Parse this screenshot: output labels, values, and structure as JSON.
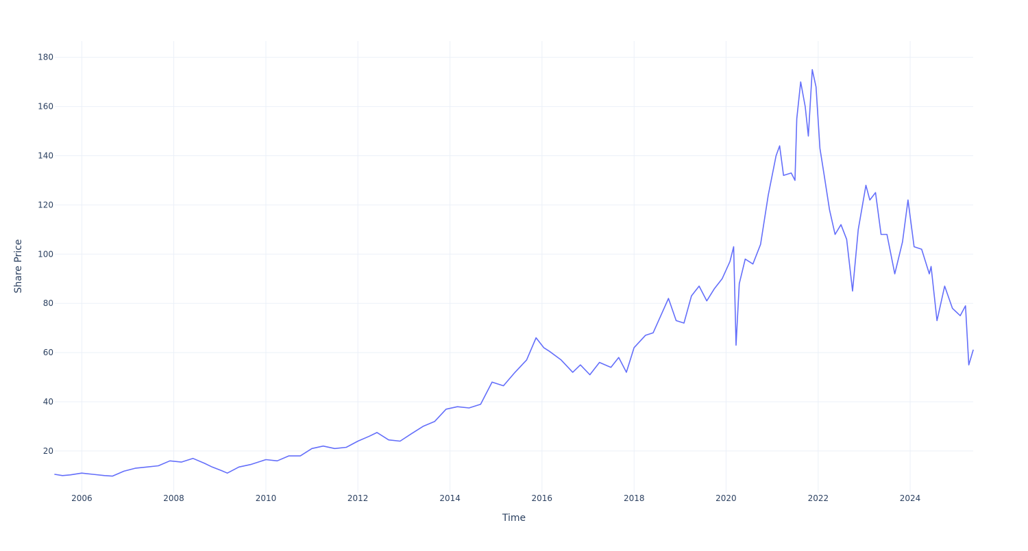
{
  "chart_data": {
    "type": "line",
    "title": "",
    "xlabel": "Time",
    "ylabel": "Share Price",
    "xlim": [
      "2005-06-01",
      "2025-05-15"
    ],
    "ylim": [
      3.0,
      186.6
    ],
    "x_ticks": [
      "2006",
      "2008",
      "2010",
      "2012",
      "2014",
      "2016",
      "2018",
      "2020",
      "2022",
      "2024"
    ],
    "y_ticks": [
      20,
      40,
      60,
      80,
      100,
      120,
      140,
      160,
      180
    ],
    "grid": true,
    "legend": "none",
    "series": [
      {
        "color": "#636efa",
        "x": [
          "2005-06-01",
          "2005-08-01",
          "2005-10-01",
          "2006-01-01",
          "2006-04-01",
          "2006-07-01",
          "2006-09-01",
          "2006-12-01",
          "2007-03-01",
          "2007-06-01",
          "2007-09-01",
          "2007-12-01",
          "2008-03-01",
          "2008-06-01",
          "2008-09-01",
          "2008-11-01",
          "2009-01-15",
          "2009-03-01",
          "2009-06-01",
          "2009-09-01",
          "2010-01-01",
          "2010-04-01",
          "2010-07-01",
          "2010-10-01",
          "2011-01-01",
          "2011-04-01",
          "2011-07-01",
          "2011-10-01",
          "2012-01-01",
          "2012-04-01",
          "2012-06-01",
          "2012-09-01",
          "2012-12-01",
          "2013-03-01",
          "2013-06-01",
          "2013-09-01",
          "2013-12-01",
          "2014-03-01",
          "2014-06-01",
          "2014-09-01",
          "2014-12-01",
          "2015-03-01",
          "2015-06-01",
          "2015-09-01",
          "2015-11-15",
          "2016-01-15",
          "2016-03-01",
          "2016-06-01",
          "2016-09-01",
          "2016-11-01",
          "2017-01-15",
          "2017-04-01",
          "2017-07-01",
          "2017-09-01",
          "2017-11-01",
          "2018-01-01",
          "2018-04-01",
          "2018-06-01",
          "2018-08-01",
          "2018-10-01",
          "2018-12-01",
          "2019-02-01",
          "2019-04-01",
          "2019-06-01",
          "2019-08-01",
          "2019-10-01",
          "2019-12-01",
          "2020-02-01",
          "2020-03-01",
          "2020-03-20",
          "2020-04-15",
          "2020-06-01",
          "2020-08-01",
          "2020-10-01",
          "2020-12-01",
          "2021-02-01",
          "2021-03-01",
          "2021-04-01",
          "2021-06-01",
          "2021-07-01",
          "2021-07-15",
          "2021-08-15",
          "2021-09-20",
          "2021-10-15",
          "2021-11-15",
          "2021-12-15",
          "2022-01-15",
          "2022-02-15",
          "2022-04-01",
          "2022-05-15",
          "2022-07-01",
          "2022-08-15",
          "2022-10-01",
          "2022-11-15",
          "2023-01-15",
          "2023-02-15",
          "2023-04-01",
          "2023-05-15",
          "2023-07-01",
          "2023-09-01",
          "2023-11-01",
          "2023-12-15",
          "2024-02-01",
          "2024-04-01",
          "2024-06-01",
          "2024-06-15",
          "2024-08-01",
          "2024-10-01",
          "2024-12-01",
          "2025-02-01",
          "2025-03-15",
          "2025-04-10",
          "2025-05-15"
        ],
        "y": [
          10.5,
          10.0,
          10.3,
          11.0,
          10.5,
          10.0,
          9.8,
          11.8,
          13.0,
          13.5,
          14.0,
          16.0,
          15.5,
          17.0,
          15.0,
          13.5,
          12.0,
          11.0,
          13.5,
          14.5,
          16.5,
          16.0,
          18.0,
          18.0,
          21.0,
          22.0,
          21.0,
          21.5,
          24.0,
          26.0,
          27.5,
          24.5,
          24.0,
          27.0,
          30.0,
          32.0,
          37.0,
          38.0,
          37.5,
          39.0,
          48.0,
          46.5,
          52.0,
          57.0,
          66.0,
          62.0,
          60.5,
          57.0,
          52.0,
          55.0,
          51.0,
          56.0,
          54.0,
          58.0,
          52.0,
          62.0,
          67.0,
          68.0,
          75.0,
          82.0,
          73.0,
          72.0,
          83.0,
          87.0,
          81.0,
          86.0,
          90.0,
          97.0,
          103.0,
          63.0,
          88.0,
          98.0,
          96.0,
          104.0,
          124.0,
          140.0,
          144.0,
          132.0,
          133.0,
          130.0,
          155.0,
          170.0,
          160.0,
          148.0,
          175.0,
          168.0,
          143.0,
          133.0,
          118.0,
          108.0,
          112.0,
          106.0,
          85.0,
          110.0,
          128.0,
          122.0,
          125.0,
          108.0,
          108.0,
          92.0,
          105.0,
          122.0,
          103.0,
          102.0,
          92.0,
          95.0,
          73.0,
          87.0,
          78.0,
          75.0,
          79.0,
          55.0,
          61.0
        ]
      }
    ]
  }
}
